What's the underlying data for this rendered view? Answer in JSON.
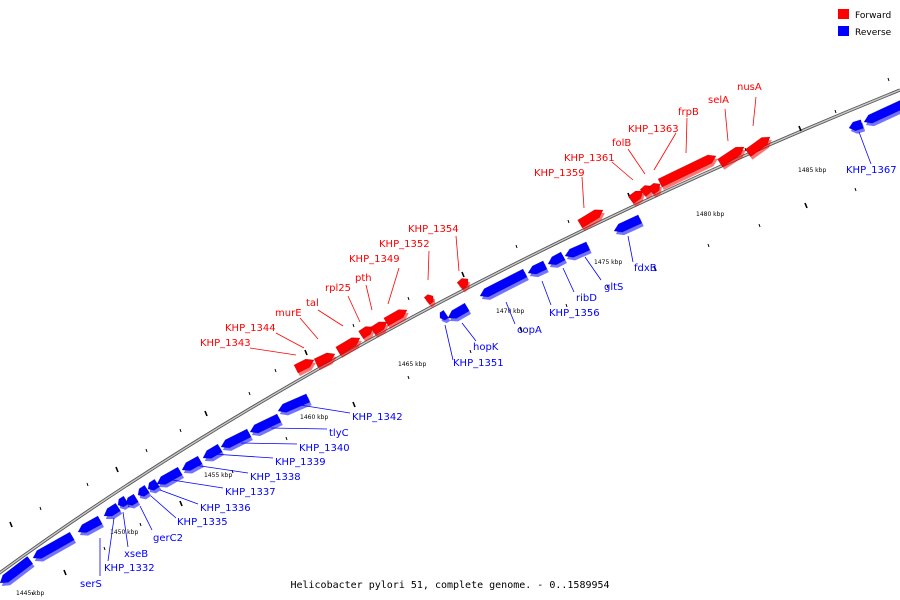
{
  "title": "Helicobacter pylori 51, complete genome. - 0..1589954",
  "colors": {
    "forward": "#ff0000",
    "reverse": "#0000ff",
    "backbone": "#888888",
    "tick": "#000000"
  },
  "legend": {
    "forward_label": "Forward",
    "reverse_label": "Reverse"
  },
  "axis": {
    "unit": "kbp",
    "tick_labels": [
      "1445 kbp",
      "1450 kbp",
      "1455 kbp",
      "1460 kbp",
      "1465 kbp",
      "1470 kbp",
      "1475 kbp",
      "1480 kbp",
      "1485 kbp"
    ]
  },
  "forward_genes": [
    "KHP_1343",
    "KHP_1344",
    "murE",
    "tal",
    "rpl25",
    "pth",
    "KHP_1349",
    "KHP_1352",
    "KHP_1354",
    "KHP_1359",
    "KHP_1361",
    "folB",
    "KHP_1363",
    "frpB",
    "selA",
    "nusA"
  ],
  "reverse_genes": [
    "serS",
    "KHP_1332",
    "xseB",
    "gerC2",
    "KHP_1335",
    "KHP_1336",
    "KHP_1337",
    "KHP_1338",
    "KHP_1339",
    "KHP_1340",
    "tlyC",
    "KHP_1342",
    "KHP_1351",
    "hopK",
    "copA",
    "KHP_1356",
    "ribD",
    "gltS",
    "fdxB",
    "KHP_1367"
  ]
}
